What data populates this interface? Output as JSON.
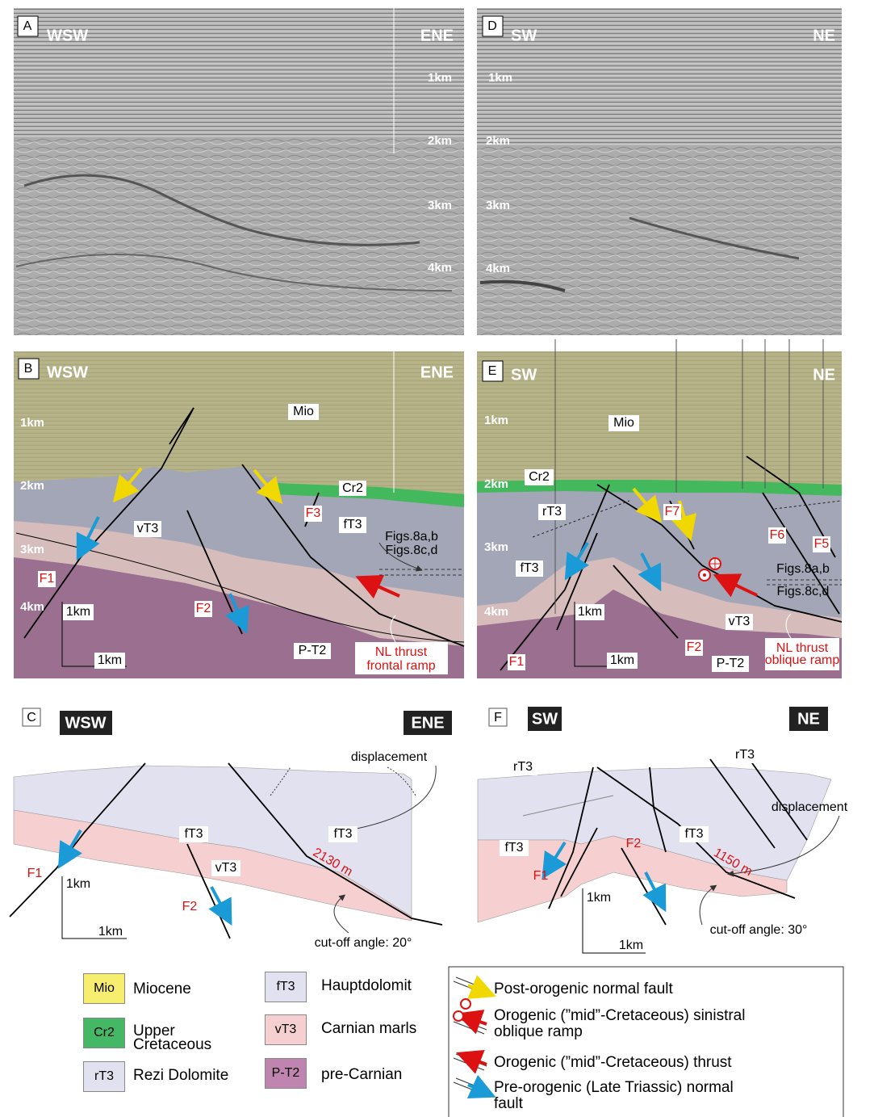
{
  "panels": {
    "a": {
      "letter": "A",
      "left": "WSW",
      "right": "ENE",
      "depths": [
        "1km",
        "2km",
        "3km",
        "4km"
      ]
    },
    "d": {
      "letter": "D",
      "left": "SW",
      "right": "NE",
      "depths": [
        "1km",
        "2km",
        "3km",
        "4km"
      ]
    },
    "b": {
      "letter": "B",
      "left": "WSW",
      "right": "ENE",
      "depths": [
        "1km",
        "2km",
        "3km",
        "4km"
      ],
      "units": [
        "Mio",
        "Cr2",
        "fT3",
        "vT3",
        "P-T2"
      ],
      "faults": [
        "F1",
        "F2",
        "F3"
      ],
      "fig_refs": [
        "Figs.8a,b",
        "Figs.8c,d"
      ],
      "note": [
        "NL thrust",
        "frontal ramp"
      ],
      "scale": [
        "1km",
        "1km"
      ]
    },
    "e": {
      "letter": "E",
      "left": "SW",
      "right": "NE",
      "depths": [
        "1km",
        "2km",
        "3km",
        "4km"
      ],
      "units": [
        "Mio",
        "Cr2",
        "rT3",
        "fT3",
        "vT3",
        "P-T2"
      ],
      "faults": [
        "F1",
        "F2",
        "F5",
        "F6",
        "F7"
      ],
      "fig_refs": [
        "Figs.8a,b",
        "Figs.8c,d"
      ],
      "note": [
        "NL thrust",
        "oblique ramp"
      ],
      "scale": [
        "1km",
        "1km"
      ]
    },
    "c": {
      "letter": "C",
      "left": "WSW",
      "right": "ENE",
      "labels": [
        "displacement",
        "fT3",
        "fT3",
        "vT3"
      ],
      "displacement_value": "2130 m",
      "faults": [
        "F1",
        "F2"
      ],
      "scale": [
        "1km",
        "1km"
      ],
      "cutoff": "cut-off angle: 20°"
    },
    "f": {
      "letter": "F",
      "left": "SW",
      "right": "NE",
      "labels": [
        "rT3",
        "rT3",
        "fT3",
        "fT3",
        "displacement"
      ],
      "displacement_value": "1150 m",
      "faults": [
        "F1",
        "F2"
      ],
      "scale": [
        "1km",
        "1km"
      ],
      "cutoff": "cut-off angle: 30°"
    }
  },
  "legend": {
    "units": [
      {
        "code": "Mio",
        "name": "Miocene"
      },
      {
        "code": "Cr2",
        "name": "Upper Cretaceous"
      },
      {
        "code": "rT3",
        "name": "Rezi Dolomite"
      },
      {
        "code": "fT3",
        "name": "Hauptdolomit"
      },
      {
        "code": "vT3",
        "name": "Carnian marls"
      },
      {
        "code": "P-T2",
        "name": "pre-Carnian"
      }
    ],
    "faults": [
      "Post-orogenic normal fault",
      "Orogenic (”mid”-Cretaceous) sinistral oblique ramp",
      "Orogenic (”mid”-Cretaceous) thrust",
      "Pre-orogenic (Late Triassic) normal fault"
    ]
  }
}
